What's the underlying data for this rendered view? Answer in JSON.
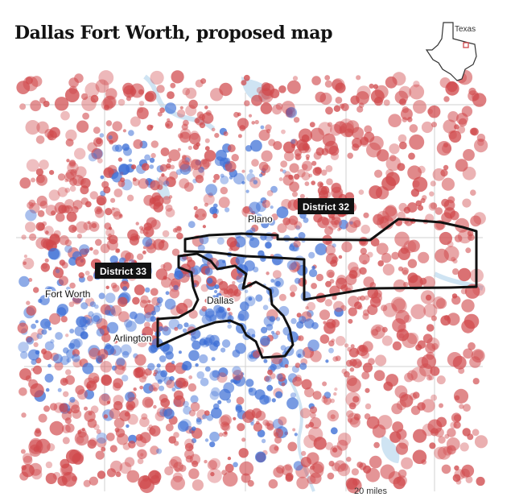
{
  "title": "Dallas Fort Worth, proposed map",
  "inset": {
    "label": "Texas"
  },
  "labels": {
    "district_32": "District 32",
    "district_33": "District 33",
    "plano": "Plano",
    "fort_worth": "Fort Worth",
    "dallas": "Dallas",
    "arlington": "Arlington"
  },
  "scale": {
    "label": "20 miles"
  },
  "colors": {
    "republican": "#d0494c",
    "democrat": "#3d6fd6",
    "boundary": "#111111",
    "water": "#cfe4f3",
    "county_line": "#c9c9c9",
    "label_box": "#121212",
    "label_box_text": "#ffffff"
  },
  "legend_semantics": {
    "red": "republican-leaning precinct",
    "blue": "democratic-leaning precinct"
  }
}
